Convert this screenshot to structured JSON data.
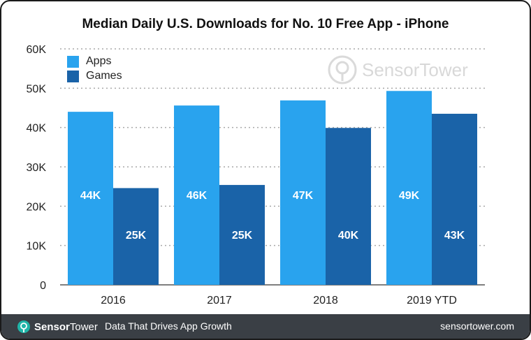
{
  "chart_data": {
    "type": "bar",
    "title": "Median Daily U.S. Downloads for No. 10 Free App - iPhone",
    "categories": [
      "2016",
      "2017",
      "2018",
      "2019 YTD"
    ],
    "series": [
      {
        "name": "Apps",
        "color": "#29a3ee",
        "values": [
          44000,
          45600,
          46900,
          49300
        ],
        "labels": [
          "44K",
          "46K",
          "47K",
          "49K"
        ]
      },
      {
        "name": "Games",
        "color": "#1a63a8",
        "values": [
          24600,
          25400,
          39900,
          43500
        ],
        "labels": [
          "25K",
          "25K",
          "40K",
          "43K"
        ]
      }
    ],
    "yticks": [
      "0",
      "10K",
      "20K",
      "30K",
      "40K",
      "50K",
      "60K"
    ],
    "ytick_values": [
      0,
      10000,
      20000,
      30000,
      40000,
      50000,
      60000
    ],
    "ylim": [
      0,
      60000
    ],
    "xlabel": "",
    "ylabel": "",
    "grid": "dotted",
    "legend_position": "top-left"
  },
  "watermark": {
    "brand_a": "Sensor",
    "brand_b": "Tower"
  },
  "footer": {
    "brand_a": "Sensor",
    "brand_b": "Tower",
    "tagline": "Data That Drives App Growth",
    "url": "sensortower.com",
    "background": "#3a3f45"
  }
}
